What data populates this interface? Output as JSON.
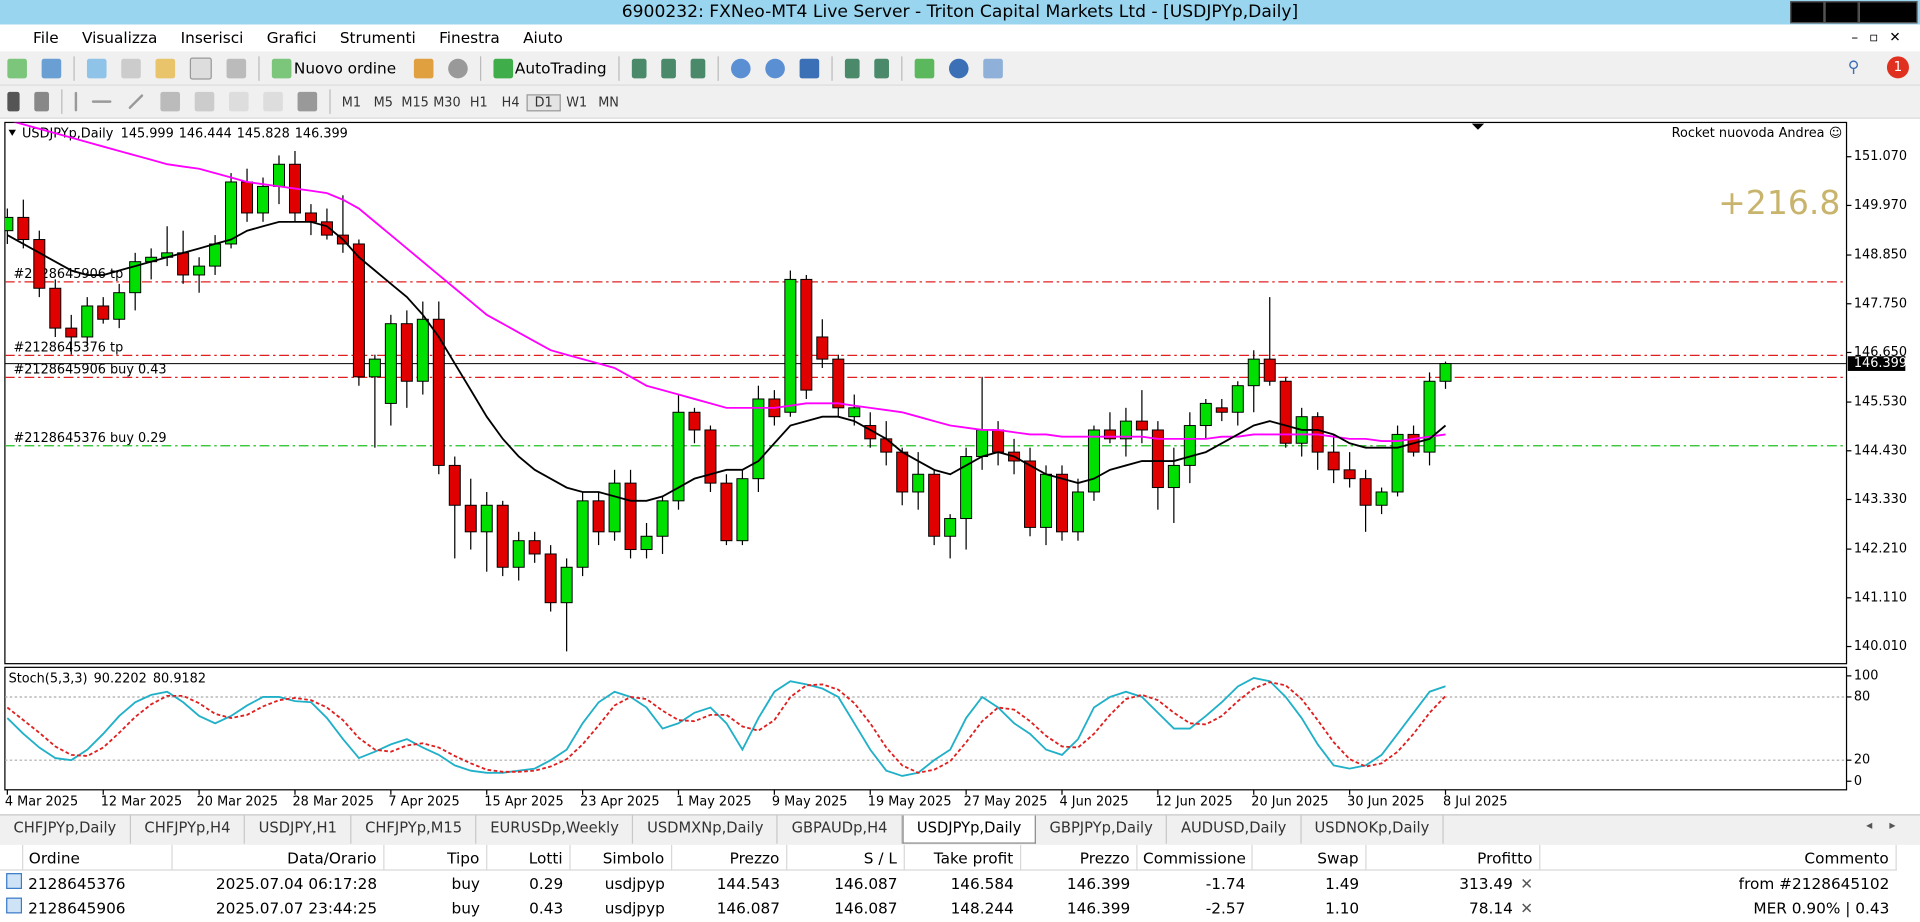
{
  "window": {
    "title": "6900232: FXNeo-MT4 Live Server - Triton Capital Markets Ltd - [USDJPYp,Daily]"
  },
  "menu": [
    "File",
    "Visualizza",
    "Inserisci",
    "Grafici",
    "Strumenti",
    "Finestra",
    "Aiuto"
  ],
  "toolbar": {
    "new_order": "Nuovo ordine",
    "autotrading": "AutoTrading",
    "timeframes": [
      "M1",
      "M5",
      "M15",
      "M30",
      "H1",
      "H4",
      "D1",
      "W1",
      "MN"
    ],
    "active_timeframe": 6,
    "notifications": "1"
  },
  "chart": {
    "type": "candlestick",
    "symbol": "USDJPYp,Daily",
    "ea_label": "Rocket nuovoda Andrea",
    "badge": "+216.8",
    "up_color": "#00e000",
    "down_color": "#e00000",
    "bid_color": "#000000",
    "ylim": [
      139.623,
      151.844
    ],
    "yticks": [
      {
        "value": 151.07,
        "label": "151.070"
      },
      {
        "value": 149.97,
        "label": "149.970"
      },
      {
        "value": 148.85,
        "label": "148.850"
      },
      {
        "value": 147.75,
        "label": "147.750"
      },
      {
        "value": 146.65,
        "label": "146.650"
      },
      {
        "value": 145.53,
        "label": "145.530"
      },
      {
        "value": 144.43,
        "label": "144.430"
      },
      {
        "value": 143.33,
        "label": "143.330"
      },
      {
        "value": 142.21,
        "label": "142.210"
      },
      {
        "value": 141.11,
        "label": "141.110"
      },
      {
        "value": 140.01,
        "label": "140.010"
      }
    ],
    "categories": [
      "4 Mar 2025",
      null,
      null,
      null,
      null,
      null,
      "12 Mar 2025",
      null,
      null,
      null,
      null,
      null,
      "20 Mar 2025",
      null,
      null,
      null,
      null,
      null,
      "28 Mar 2025",
      null,
      null,
      null,
      null,
      null,
      "7 Apr 2025",
      null,
      null,
      null,
      null,
      null,
      "15 Apr 2025",
      null,
      null,
      null,
      null,
      null,
      "23 Apr 2025",
      null,
      null,
      null,
      null,
      null,
      "1 May 2025",
      null,
      null,
      null,
      null,
      null,
      "9 May 2025",
      null,
      null,
      null,
      null,
      null,
      "19 May 2025",
      null,
      null,
      null,
      null,
      null,
      "27 May 2025",
      null,
      null,
      null,
      null,
      null,
      "4 Jun 2025",
      null,
      null,
      null,
      null,
      null,
      "12 Jun 2025",
      null,
      null,
      null,
      null,
      null,
      "20 Jun 2025",
      null,
      null,
      null,
      null,
      null,
      "30 Jun 2025",
      null,
      null,
      null,
      null,
      null,
      "8 Jul 2025"
    ],
    "candles": [
      [
        149.4,
        149.9,
        149.1,
        149.7
      ],
      [
        149.7,
        150.1,
        149.0,
        149.2
      ],
      [
        149.2,
        149.4,
        147.9,
        148.1
      ],
      [
        148.1,
        148.3,
        147.0,
        147.2
      ],
      [
        147.2,
        147.5,
        146.6,
        147.0
      ],
      [
        147.0,
        147.9,
        146.8,
        147.7
      ],
      [
        147.7,
        147.9,
        147.3,
        147.4
      ],
      [
        147.4,
        148.2,
        147.2,
        148.0
      ],
      [
        148.0,
        148.9,
        147.6,
        148.7
      ],
      [
        148.7,
        149.0,
        148.3,
        148.8
      ],
      [
        148.8,
        149.5,
        148.6,
        148.9
      ],
      [
        148.9,
        149.4,
        148.2,
        148.4
      ],
      [
        148.4,
        148.8,
        148.0,
        148.6
      ],
      [
        148.6,
        149.3,
        148.4,
        149.1
      ],
      [
        149.1,
        150.7,
        149.0,
        150.5
      ],
      [
        150.5,
        150.8,
        149.6,
        149.8
      ],
      [
        149.8,
        150.6,
        149.6,
        150.4
      ],
      [
        150.4,
        151.1,
        150.0,
        150.9
      ],
      [
        150.9,
        151.2,
        149.6,
        149.8
      ],
      [
        149.8,
        150.0,
        149.3,
        149.6
      ],
      [
        149.6,
        149.9,
        149.2,
        149.3
      ],
      [
        149.3,
        150.2,
        148.9,
        149.1
      ],
      [
        149.1,
        149.2,
        145.9,
        146.1
      ],
      [
        146.1,
        146.6,
        144.5,
        146.5
      ],
      [
        145.5,
        147.5,
        145.0,
        147.3
      ],
      [
        147.3,
        147.6,
        145.4,
        146.0
      ],
      [
        146.0,
        147.8,
        145.7,
        147.4
      ],
      [
        147.4,
        147.8,
        143.9,
        144.1
      ],
      [
        144.1,
        144.3,
        142.0,
        143.2
      ],
      [
        143.2,
        143.8,
        142.2,
        142.6
      ],
      [
        142.6,
        143.5,
        141.7,
        143.2
      ],
      [
        143.2,
        143.3,
        141.6,
        141.8
      ],
      [
        141.8,
        142.6,
        141.5,
        142.4
      ],
      [
        142.4,
        142.6,
        141.9,
        142.1
      ],
      [
        142.1,
        142.3,
        140.8,
        141.0
      ],
      [
        141.0,
        142.0,
        139.9,
        141.8
      ],
      [
        141.8,
        143.5,
        141.6,
        143.3
      ],
      [
        143.3,
        143.5,
        142.3,
        142.6
      ],
      [
        142.6,
        144.0,
        142.4,
        143.7
      ],
      [
        143.7,
        144.0,
        142.0,
        142.2
      ],
      [
        142.2,
        142.8,
        142.0,
        142.5
      ],
      [
        142.5,
        143.4,
        142.1,
        143.3
      ],
      [
        143.3,
        145.7,
        143.1,
        145.3
      ],
      [
        145.3,
        145.4,
        144.6,
        144.9
      ],
      [
        144.9,
        145.0,
        143.5,
        143.7
      ],
      [
        143.7,
        143.9,
        142.3,
        142.4
      ],
      [
        142.4,
        144.0,
        142.3,
        143.8
      ],
      [
        143.8,
        145.9,
        143.5,
        145.6
      ],
      [
        145.6,
        145.8,
        145.0,
        145.2
      ],
      [
        145.3,
        148.5,
        145.2,
        148.3
      ],
      [
        148.3,
        148.4,
        145.6,
        145.8
      ],
      [
        147.0,
        147.4,
        146.3,
        146.5
      ],
      [
        146.5,
        146.6,
        145.2,
        145.4
      ],
      [
        145.2,
        145.7,
        145.0,
        145.4
      ],
      [
        145.0,
        145.3,
        144.5,
        144.7
      ],
      [
        144.7,
        145.1,
        144.1,
        144.4
      ],
      [
        144.4,
        144.5,
        143.2,
        143.5
      ],
      [
        143.5,
        144.4,
        143.1,
        143.9
      ],
      [
        143.9,
        144.0,
        142.3,
        142.5
      ],
      [
        142.5,
        143.0,
        142.0,
        142.9
      ],
      [
        142.9,
        144.5,
        142.2,
        144.3
      ],
      [
        144.3,
        146.1,
        144.0,
        144.9
      ],
      [
        144.9,
        145.1,
        144.1,
        144.4
      ],
      [
        144.4,
        144.7,
        143.9,
        144.2
      ],
      [
        144.2,
        144.5,
        142.5,
        142.7
      ],
      [
        142.7,
        144.1,
        142.3,
        143.9
      ],
      [
        143.9,
        144.1,
        142.4,
        142.6
      ],
      [
        142.6,
        143.8,
        142.4,
        143.5
      ],
      [
        143.5,
        145.0,
        143.3,
        144.9
      ],
      [
        144.9,
        145.3,
        144.6,
        144.7
      ],
      [
        144.7,
        145.4,
        144.3,
        145.1
      ],
      [
        145.1,
        145.8,
        144.6,
        144.9
      ],
      [
        144.9,
        145.1,
        143.1,
        143.6
      ],
      [
        143.6,
        144.5,
        142.8,
        144.1
      ],
      [
        144.1,
        145.3,
        143.7,
        145.0
      ],
      [
        145.0,
        145.6,
        144.7,
        145.5
      ],
      [
        145.4,
        145.6,
        145.1,
        145.3
      ],
      [
        145.3,
        146.0,
        145.0,
        145.9
      ],
      [
        145.9,
        146.7,
        145.3,
        146.5
      ],
      [
        146.5,
        147.9,
        145.9,
        146.0
      ],
      [
        146.0,
        146.1,
        144.5,
        144.6
      ],
      [
        144.6,
        145.4,
        144.3,
        145.2
      ],
      [
        145.2,
        145.3,
        144.0,
        144.4
      ],
      [
        144.4,
        144.8,
        143.7,
        144.0
      ],
      [
        144.0,
        144.4,
        143.6,
        143.8
      ],
      [
        143.8,
        144.0,
        142.6,
        143.2
      ],
      [
        143.2,
        143.6,
        143.0,
        143.5
      ],
      [
        143.5,
        145.0,
        143.4,
        144.8
      ],
      [
        144.8,
        145.0,
        144.3,
        144.4
      ],
      [
        144.4,
        146.2,
        144.1,
        146.0
      ],
      [
        145.999,
        146.444,
        145.828,
        146.399
      ]
    ],
    "ma_fast": {
      "color": "#000000",
      "values": [
        149.3,
        149.1,
        148.9,
        148.7,
        148.5,
        148.4,
        148.4,
        148.5,
        148.6,
        148.7,
        148.8,
        148.9,
        149.0,
        149.1,
        149.2,
        149.4,
        149.5,
        149.6,
        149.6,
        149.6,
        149.5,
        149.2,
        148.8,
        148.5,
        148.2,
        147.9,
        147.5,
        147.0,
        146.4,
        145.8,
        145.2,
        144.7,
        144.3,
        144.0,
        143.8,
        143.6,
        143.5,
        143.5,
        143.4,
        143.3,
        143.3,
        143.4,
        143.6,
        143.8,
        143.9,
        144.0,
        144.0,
        144.2,
        144.6,
        145.0,
        145.1,
        145.2,
        145.2,
        145.1,
        144.9,
        144.7,
        144.4,
        144.2,
        144.0,
        143.9,
        144.1,
        144.3,
        144.4,
        144.3,
        144.1,
        143.9,
        143.8,
        143.7,
        143.8,
        144.0,
        144.1,
        144.2,
        144.2,
        144.2,
        144.3,
        144.4,
        144.6,
        144.8,
        145.0,
        145.1,
        145.0,
        144.9,
        144.9,
        144.8,
        144.6,
        144.5,
        144.5,
        144.5,
        144.6,
        144.7,
        145.0
      ]
    },
    "ma_slow": {
      "color": "#ff00ff",
      "values": [
        151.9,
        151.8,
        151.7,
        151.6,
        151.5,
        151.4,
        151.3,
        151.2,
        151.1,
        151.0,
        150.9,
        150.85,
        150.8,
        150.7,
        150.6,
        150.5,
        150.45,
        150.4,
        150.35,
        150.3,
        150.25,
        150.1,
        149.9,
        149.6,
        149.3,
        149.0,
        148.7,
        148.4,
        148.1,
        147.8,
        147.5,
        147.3,
        147.1,
        146.9,
        146.7,
        146.6,
        146.5,
        146.4,
        146.3,
        146.1,
        145.9,
        145.8,
        145.7,
        145.6,
        145.5,
        145.4,
        145.4,
        145.4,
        145.4,
        145.45,
        145.5,
        145.5,
        145.5,
        145.45,
        145.4,
        145.35,
        145.3,
        145.2,
        145.1,
        145.0,
        144.95,
        144.9,
        144.9,
        144.85,
        144.8,
        144.8,
        144.75,
        144.75,
        144.75,
        144.75,
        144.75,
        144.75,
        144.7,
        144.7,
        144.7,
        144.7,
        144.75,
        144.75,
        144.8,
        144.8,
        144.8,
        144.8,
        144.8,
        144.75,
        144.7,
        144.7,
        144.65,
        144.65,
        144.7,
        144.75,
        144.8
      ]
    },
    "levels": [
      {
        "label": "#2128645906 tp",
        "value": 148.244,
        "color": "#e02020"
      },
      {
        "label": "#2128645376 tp",
        "value": 146.584,
        "color": "#e02020"
      },
      {
        "label": "#2128645906 buy 0.43",
        "value": 146.087,
        "color": "#e02020"
      },
      {
        "label": "#2128645376 buy 0.29",
        "value": 144.543,
        "color": "#20c020"
      }
    ]
  },
  "stochastic": {
    "name": "Stoch(5,3,3)",
    "ylim": [
      -8.1,
      108.1
    ],
    "yticks": [
      100,
      80,
      20,
      0
    ],
    "levels": [
      80,
      20
    ],
    "main": {
      "color": "#20b0c8",
      "values": [
        60,
        45,
        32,
        22,
        20,
        30,
        45,
        62,
        75,
        82,
        85,
        75,
        62,
        55,
        62,
        72,
        80,
        80,
        76,
        75,
        60,
        40,
        22,
        28,
        35,
        40,
        32,
        25,
        15,
        10,
        8,
        8,
        10,
        12,
        20,
        30,
        55,
        75,
        85,
        80,
        70,
        50,
        55,
        65,
        70,
        55,
        30,
        60,
        85,
        95,
        92,
        88,
        80,
        55,
        30,
        10,
        5,
        8,
        20,
        30,
        60,
        80,
        70,
        55,
        45,
        30,
        25,
        40,
        70,
        80,
        85,
        80,
        65,
        50,
        50,
        62,
        75,
        90,
        98,
        95,
        80,
        60,
        35,
        15,
        12,
        15,
        25,
        45,
        65,
        85,
        90.2202
      ]
    },
    "signal": {
      "color": "#e02020",
      "values": [
        70,
        58,
        46,
        33,
        25,
        24,
        32,
        46,
        61,
        73,
        81,
        81,
        74,
        64,
        60,
        63,
        71,
        77,
        79,
        77,
        70,
        58,
        41,
        30,
        28,
        34,
        36,
        32,
        24,
        17,
        11,
        9,
        9,
        10,
        14,
        21,
        35,
        53,
        72,
        80,
        78,
        67,
        58,
        57,
        63,
        63,
        52,
        48,
        58,
        80,
        91,
        92,
        87,
        74,
        55,
        32,
        15,
        8,
        11,
        19,
        37,
        57,
        70,
        68,
        57,
        43,
        33,
        32,
        45,
        63,
        78,
        82,
        77,
        65,
        55,
        54,
        62,
        76,
        88,
        94,
        91,
        78,
        58,
        37,
        21,
        14,
        17,
        28,
        45,
        65,
        80.9182
      ]
    }
  },
  "tabs": [
    "CHFJPYp,Daily",
    "CHFJPYp,H4",
    "USDJPY,H1",
    "CHFJPYp,M15",
    "EURUSDp,Weekly",
    "USDMXNp,Daily",
    "GBPAUDp,H4",
    "USDJPYp,Daily",
    "GBPJPYp,Daily",
    "AUDUSD,Daily",
    "USDNOKp,Daily"
  ],
  "active_tab": 7,
  "table": {
    "headers": [
      "Ordine",
      "Data/Orario",
      "Tipo",
      "Lotti",
      "Simbolo",
      "Prezzo",
      "S / L",
      "Take profit",
      "Prezzo",
      "Commissione",
      "Swap",
      "Profitto",
      "Commento"
    ],
    "rows": [
      [
        "2128645376",
        "2025.07.04 06:17:28",
        "buy",
        "0.29",
        "usdjpyp",
        "144.543",
        "146.087",
        "146.584",
        "146.399",
        "-1.74",
        "1.49",
        "313.49",
        "from #2128645102"
      ],
      [
        "2128645906",
        "2025.07.07 23:44:25",
        "buy",
        "0.43",
        "usdjpyp",
        "146.087",
        "146.087",
        "148.244",
        "146.399",
        "-2.57",
        "1.10",
        "78.14",
        "MER 0.90% | 0.43"
      ]
    ]
  }
}
